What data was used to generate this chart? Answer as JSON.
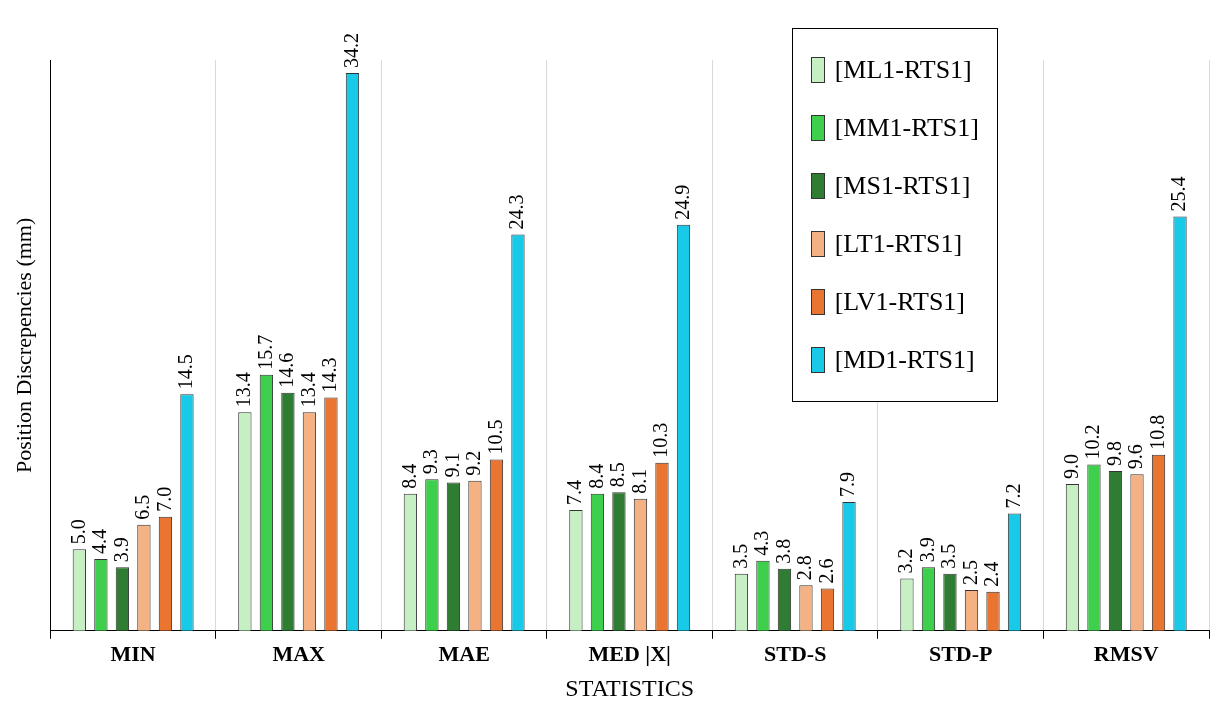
{
  "chart_data": {
    "type": "bar",
    "xlabel": "STATISTICS",
    "ylabel": "Position Discrepencies (mm)",
    "categories": [
      "MIN",
      "MAX",
      "MAE",
      "MED |X|",
      "STD-S",
      "STD-P",
      "RMSV"
    ],
    "series": [
      {
        "name": "[ML1-RTS1]",
        "color": "#c6efc4",
        "values": [
          5.0,
          13.4,
          8.4,
          7.4,
          3.5,
          3.2,
          9.0
        ],
        "value_labels": [
          "5.0",
          "13.4",
          "8.4",
          "7.4",
          "3.5",
          "3.2",
          "9.0"
        ]
      },
      {
        "name": "[MM1-RTS1]",
        "color": "#3ecf4c",
        "values": [
          4.4,
          15.7,
          9.3,
          8.4,
          4.3,
          3.9,
          10.2
        ],
        "value_labels": [
          "4.4",
          "15.7",
          "9.3",
          "8.4",
          "4.3",
          "3.9",
          "10.2"
        ]
      },
      {
        "name": "[MS1-RTS1]",
        "color": "#2e7d32",
        "values": [
          3.9,
          14.6,
          9.1,
          8.5,
          3.8,
          3.5,
          9.8
        ],
        "value_labels": [
          "3.9",
          "14.6",
          "9.1",
          "8.5",
          "3.8",
          "3.5",
          "9.8"
        ]
      },
      {
        "name": "[LT1-RTS1]",
        "color": "#f4b183",
        "values": [
          6.5,
          13.4,
          9.2,
          8.1,
          2.8,
          2.5,
          9.6
        ],
        "value_labels": [
          "6.5",
          "13.4",
          "9.2",
          "8.1",
          "2.8",
          "2.5",
          "9.6"
        ]
      },
      {
        "name": "[LV1-RTS1]",
        "color": "#ea7530",
        "values": [
          7.0,
          14.3,
          10.5,
          10.3,
          2.6,
          2.4,
          10.8
        ],
        "value_labels": [
          "7.0",
          "14.3",
          "10.5",
          "10.3",
          "2.6",
          "2.4",
          "10.8"
        ]
      },
      {
        "name": "[MD1-RTS1]",
        "color": "#19c9e8",
        "values": [
          14.5,
          34.2,
          24.3,
          24.9,
          7.9,
          7.2,
          25.4
        ],
        "value_labels": [
          "14.5",
          "34.2",
          "24.3",
          "24.9",
          "7.9",
          "7.2",
          "25.4"
        ]
      }
    ],
    "grid": "x",
    "legend": "top right"
  }
}
